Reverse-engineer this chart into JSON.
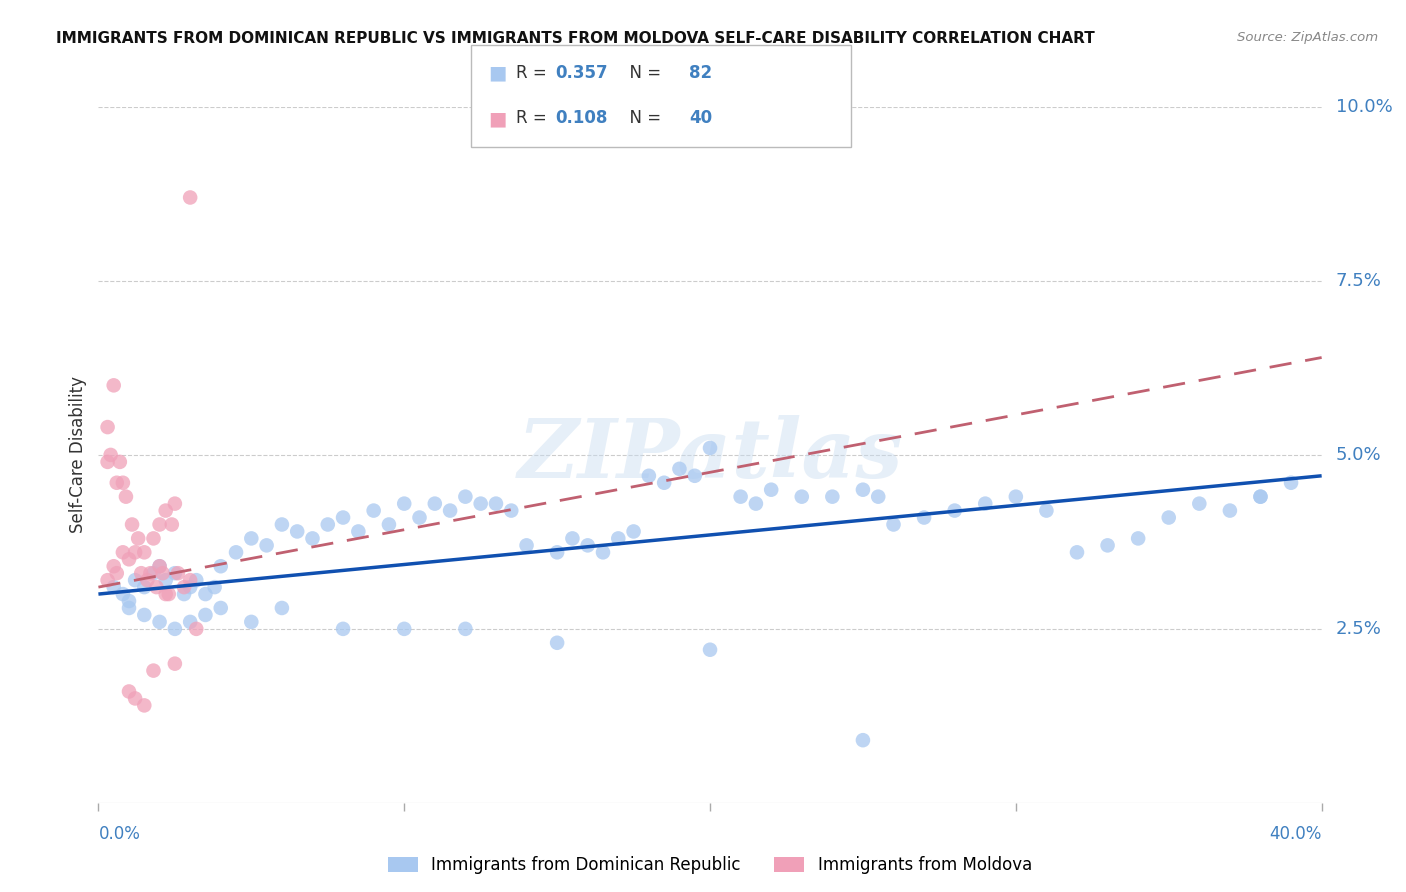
{
  "title": "IMMIGRANTS FROM DOMINICAN REPUBLIC VS IMMIGRANTS FROM MOLDOVA SELF-CARE DISABILITY CORRELATION CHART",
  "source": "Source: ZipAtlas.com",
  "ylabel": "Self-Care Disability",
  "right_ytick_labels": [
    "",
    "2.5%",
    "5.0%",
    "7.5%",
    "10.0%"
  ],
  "right_yticks": [
    0.0,
    0.025,
    0.05,
    0.075,
    0.1
  ],
  "xlim": [
    0.0,
    0.4
  ],
  "ylim": [
    0.0,
    0.1
  ],
  "color_blue": "#A8C8F0",
  "color_pink": "#F0A0B8",
  "color_line_blue": "#1050B0",
  "color_line_pink": "#C06070",
  "color_text_blue": "#4080C0",
  "color_grid": "#CCCCCC",
  "background": "#FFFFFF",
  "watermark_text": "ZIPatlas",
  "legend_label1": "Immigrants from Dominican Republic",
  "legend_label2": "Immigrants from Moldova",
  "legend_r1": "0.357",
  "legend_n1": "82",
  "legend_r2": "0.108",
  "legend_n2": "40",
  "blue_line_x": [
    0.0,
    0.4
  ],
  "blue_line_y": [
    0.03,
    0.047
  ],
  "pink_line_x": [
    0.0,
    0.4
  ],
  "pink_line_y": [
    0.031,
    0.064
  ],
  "blue_x": [
    0.005,
    0.008,
    0.01,
    0.012,
    0.015,
    0.018,
    0.02,
    0.022,
    0.025,
    0.028,
    0.03,
    0.032,
    0.035,
    0.038,
    0.04,
    0.045,
    0.05,
    0.055,
    0.06,
    0.065,
    0.07,
    0.075,
    0.08,
    0.085,
    0.09,
    0.095,
    0.1,
    0.105,
    0.11,
    0.115,
    0.12,
    0.125,
    0.13,
    0.135,
    0.14,
    0.15,
    0.155,
    0.16,
    0.165,
    0.17,
    0.175,
    0.18,
    0.185,
    0.19,
    0.195,
    0.2,
    0.21,
    0.215,
    0.22,
    0.23,
    0.24,
    0.25,
    0.255,
    0.26,
    0.27,
    0.28,
    0.29,
    0.3,
    0.31,
    0.32,
    0.33,
    0.34,
    0.35,
    0.36,
    0.37,
    0.38,
    0.39,
    0.01,
    0.015,
    0.02,
    0.025,
    0.03,
    0.035,
    0.04,
    0.05,
    0.06,
    0.08,
    0.1,
    0.12,
    0.15,
    0.2,
    0.25,
    0.38
  ],
  "blue_y": [
    0.031,
    0.03,
    0.029,
    0.032,
    0.031,
    0.033,
    0.034,
    0.032,
    0.033,
    0.03,
    0.031,
    0.032,
    0.03,
    0.031,
    0.034,
    0.036,
    0.038,
    0.037,
    0.04,
    0.039,
    0.038,
    0.04,
    0.041,
    0.039,
    0.042,
    0.04,
    0.043,
    0.041,
    0.043,
    0.042,
    0.044,
    0.043,
    0.043,
    0.042,
    0.037,
    0.036,
    0.038,
    0.037,
    0.036,
    0.038,
    0.039,
    0.047,
    0.046,
    0.048,
    0.047,
    0.051,
    0.044,
    0.043,
    0.045,
    0.044,
    0.044,
    0.045,
    0.044,
    0.04,
    0.041,
    0.042,
    0.043,
    0.044,
    0.042,
    0.036,
    0.037,
    0.038,
    0.041,
    0.043,
    0.042,
    0.044,
    0.046,
    0.028,
    0.027,
    0.026,
    0.025,
    0.026,
    0.027,
    0.028,
    0.026,
    0.028,
    0.025,
    0.025,
    0.025,
    0.023,
    0.022,
    0.009,
    0.044
  ],
  "pink_x": [
    0.003,
    0.005,
    0.006,
    0.008,
    0.01,
    0.012,
    0.014,
    0.016,
    0.018,
    0.02,
    0.022,
    0.024,
    0.026,
    0.028,
    0.03,
    0.032,
    0.003,
    0.005,
    0.007,
    0.009,
    0.011,
    0.013,
    0.015,
    0.017,
    0.019,
    0.021,
    0.023,
    0.025,
    0.003,
    0.004,
    0.006,
    0.008,
    0.01,
    0.012,
    0.015,
    0.018,
    0.02,
    0.022,
    0.025,
    0.03
  ],
  "pink_y": [
    0.032,
    0.034,
    0.033,
    0.036,
    0.035,
    0.036,
    0.033,
    0.032,
    0.038,
    0.04,
    0.042,
    0.04,
    0.033,
    0.031,
    0.032,
    0.025,
    0.054,
    0.06,
    0.049,
    0.044,
    0.04,
    0.038,
    0.036,
    0.033,
    0.031,
    0.033,
    0.03,
    0.02,
    0.049,
    0.05,
    0.046,
    0.046,
    0.016,
    0.015,
    0.014,
    0.019,
    0.034,
    0.03,
    0.043,
    0.087
  ]
}
